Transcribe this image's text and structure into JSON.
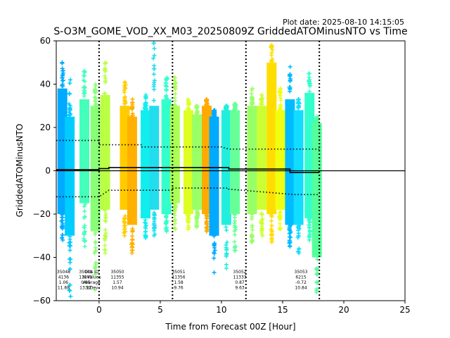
{
  "plot_date": "Plot date: 2025-08-10 14:15:05",
  "chart_data": {
    "type": "scatter",
    "title": "S-O3M_GOME_VOD_XX_M03_20250809Z GriddedATOMinusNTO vs Time",
    "xlabel": "Time from Forecast 00Z [Hour]",
    "ylabel": "GriddedATOMinusNTO",
    "xlim": [
      -3.5,
      25
    ],
    "ylim": [
      -60,
      60
    ],
    "xticks": [
      0,
      5,
      10,
      15,
      20,
      25
    ],
    "yticks": [
      -60,
      -40,
      -20,
      0,
      20,
      40,
      60
    ],
    "zero_line": 0,
    "vertical_lines": [
      0,
      6,
      12,
      18
    ],
    "series": [
      {
        "x": -3.0,
        "ymin": -32,
        "ymax": 50,
        "q_lo": -20,
        "q_hi": 38,
        "color": "#00aaff"
      },
      {
        "x": -2.4,
        "ymin": -58,
        "ymax": 42,
        "q_lo": -30,
        "q_hi": 25,
        "color": "#00ccff"
      },
      {
        "x": -1.2,
        "ymin": -35,
        "ymax": 46,
        "q_lo": -15,
        "q_hi": 33,
        "color": "#44ffbb"
      },
      {
        "x": -0.3,
        "ymin": -55,
        "ymax": 40,
        "q_lo": -28,
        "q_hi": 30,
        "color": "#88ff77"
      },
      {
        "x": 0.5,
        "ymin": -38,
        "ymax": 50,
        "q_lo": -18,
        "q_hi": 35,
        "color": "#bbff44"
      },
      {
        "x": 2.1,
        "ymin": -30,
        "ymax": 41,
        "q_lo": -18,
        "q_hi": 30,
        "color": "#ffcc00"
      },
      {
        "x": 2.7,
        "ymin": -38,
        "ymax": 33,
        "q_lo": -25,
        "q_hi": 25,
        "color": "#ffb000"
      },
      {
        "x": 3.8,
        "ymin": -31,
        "ymax": 35,
        "q_lo": -22,
        "q_hi": 28,
        "color": "#11eeee"
      },
      {
        "x": 4.5,
        "ymin": -30,
        "ymax": 59,
        "q_lo": -18,
        "q_hi": 30,
        "color": "#22ddee"
      },
      {
        "x": 5.5,
        "ymin": -28,
        "ymax": 43,
        "q_lo": -20,
        "q_hi": 33,
        "color": "#33ffcc"
      },
      {
        "x": 6.2,
        "ymin": -27,
        "ymax": 43,
        "q_lo": -15,
        "q_hi": 30,
        "color": "#aaff55"
      },
      {
        "x": 7.3,
        "ymin": -27,
        "ymax": 33,
        "q_lo": -20,
        "q_hi": 28,
        "color": "#ddff22"
      },
      {
        "x": 8.0,
        "ymin": -26,
        "ymax": 30,
        "q_lo": -18,
        "q_hi": 26,
        "color": "#99ff66"
      },
      {
        "x": 8.8,
        "ymin": -28,
        "ymax": 33,
        "q_lo": -20,
        "q_hi": 30,
        "color": "#ffaa00"
      },
      {
        "x": 9.4,
        "ymin": -47,
        "ymax": 28,
        "q_lo": -30,
        "q_hi": 25,
        "color": "#00aaff"
      },
      {
        "x": 10.4,
        "ymin": -45,
        "ymax": 30,
        "q_lo": -25,
        "q_hi": 28,
        "color": "#22eedd"
      },
      {
        "x": 11.1,
        "ymin": -37,
        "ymax": 31,
        "q_lo": -20,
        "q_hi": 28,
        "color": "#66ff99"
      },
      {
        "x": 12.5,
        "ymin": -33,
        "ymax": 38,
        "q_lo": -20,
        "q_hi": 30,
        "color": "#99ff66"
      },
      {
        "x": 13.3,
        "ymin": -30,
        "ymax": 35,
        "q_lo": -18,
        "q_hi": 30,
        "color": "#ccff33"
      },
      {
        "x": 14.1,
        "ymin": -33,
        "ymax": 58,
        "q_lo": -20,
        "q_hi": 50,
        "color": "#ffdd00"
      },
      {
        "x": 14.8,
        "ymin": -27,
        "ymax": 38,
        "q_lo": -18,
        "q_hi": 28,
        "color": "#eeff11"
      },
      {
        "x": 15.6,
        "ymin": -35,
        "ymax": 48,
        "q_lo": -25,
        "q_hi": 33,
        "color": "#00bbff"
      },
      {
        "x": 16.3,
        "ymin": -38,
        "ymax": 33,
        "q_lo": -25,
        "q_hi": 28,
        "color": "#11ddff"
      },
      {
        "x": 17.2,
        "ymin": -32,
        "ymax": 45,
        "q_lo": -22,
        "q_hi": 36,
        "color": "#33ffcc"
      },
      {
        "x": 17.8,
        "ymin": -56,
        "ymax": 25,
        "q_lo": -40,
        "q_hi": 22,
        "color": "#55ff99"
      }
    ],
    "mean_line": [
      [
        -3.5,
        0.5
      ],
      [
        0,
        0.5
      ],
      [
        0,
        1.0
      ],
      [
        0.8,
        1.0
      ],
      [
        0.8,
        1.5
      ],
      [
        10.6,
        1.5
      ],
      [
        10.6,
        0.8
      ],
      [
        15.6,
        0.8
      ],
      [
        15.6,
        -0.8
      ],
      [
        18,
        -0.8
      ]
    ],
    "upper_std_line": [
      [
        -3.5,
        14
      ],
      [
        0,
        14
      ],
      [
        0,
        12
      ],
      [
        3.5,
        12
      ],
      [
        3.5,
        11
      ],
      [
        10,
        11
      ],
      [
        10.6,
        10
      ],
      [
        15,
        10
      ],
      [
        16,
        10
      ],
      [
        18,
        10
      ]
    ],
    "lower_std_line": [
      [
        -3.5,
        -12
      ],
      [
        0,
        -12
      ],
      [
        0,
        -12
      ],
      [
        0.8,
        -9
      ],
      [
        6,
        -9
      ],
      [
        6,
        -8
      ],
      [
        10.6,
        -8
      ],
      [
        10.6,
        -8.5
      ],
      [
        16,
        -11
      ],
      [
        18,
        -11
      ]
    ],
    "annotations": [
      {
        "x": -2.9,
        "lines": [
          "35048",
          "4136",
          "1.06",
          "11.88"
        ]
      },
      {
        "x": -1.1,
        "lines": [
          "35049",
          "11841",
          "0.85",
          "13.12"
        ]
      },
      {
        "x": -0.6,
        "lines": [
          "Obs ID",
          "N Values",
          "Average",
          "StDev"
        ]
      },
      {
        "x": 1.5,
        "lines": [
          "35050",
          "11355",
          "1.57",
          "10.94"
        ]
      },
      {
        "x": 6.5,
        "lines": [
          "35051",
          "11356",
          "1.58",
          "9.76"
        ]
      },
      {
        "x": 11.5,
        "lines": [
          "35052",
          "11333",
          "0.87",
          "9.63"
        ]
      },
      {
        "x": 16.5,
        "lines": [
          "35053",
          "6215",
          "-0.72",
          "10.84"
        ]
      }
    ]
  }
}
